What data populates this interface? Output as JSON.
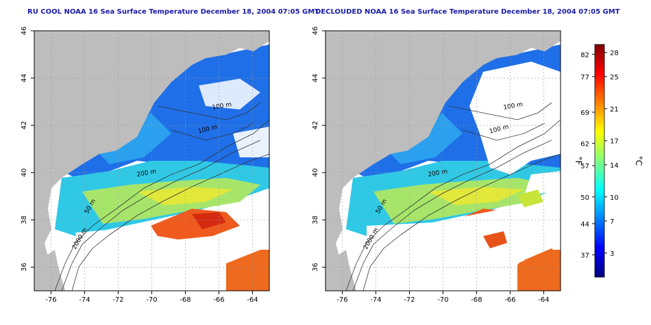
{
  "panels": [
    {
      "id": "left",
      "title": "RU COOL NOAA 16 Sea Surface Temperature December 18, 2004 07:05 GMT",
      "clouds": true
    },
    {
      "id": "right",
      "title": "DECLOUDED NOAA 16 Sea Surface Temperature December 18, 2004 07:05 GMT",
      "clouds": false
    }
  ],
  "axes": {
    "lon_ticks": [
      "-76",
      "-74",
      "-72",
      "-70",
      "-68",
      "-66",
      "-64"
    ],
    "lat_ticks": [
      "36",
      "38",
      "40",
      "42",
      "44",
      "46"
    ],
    "lon_values": [
      -76,
      -74,
      -72,
      -70,
      -68,
      -66,
      -64
    ],
    "lat_values": [
      36,
      38,
      40,
      42,
      44,
      46
    ],
    "lon_range": [
      -77,
      -63
    ],
    "lat_range": [
      35,
      46
    ],
    "grid": true
  },
  "contour_labels": [
    "100 m",
    "100 m",
    "200 m",
    "50 m",
    "2000 m"
  ],
  "colorbar": {
    "fahrenheit_ticks": [
      "82",
      "77",
      "69",
      "62",
      "57",
      "50",
      "44",
      "37"
    ],
    "fahrenheit_values": [
      82,
      77,
      69,
      62,
      57,
      50,
      44,
      37
    ],
    "celsius_ticks": [
      "28",
      "25",
      "21",
      "17",
      "14",
      "10",
      "7",
      "3"
    ],
    "celsius_values": [
      28,
      25,
      21,
      17,
      14,
      10,
      7,
      3
    ],
    "celsius_range": [
      0,
      29
    ],
    "unit_f": "°F",
    "unit_c": "°C",
    "colors": [
      "#000080",
      "#0000ff",
      "#0080ff",
      "#00ffff",
      "#80ff80",
      "#ffff00",
      "#ff8000",
      "#ff0000",
      "#800000"
    ]
  },
  "colors": {
    "land": "#bdbdbd",
    "cloud": "#ffffff",
    "title": "#1a1aa6",
    "contour": "#333333"
  }
}
